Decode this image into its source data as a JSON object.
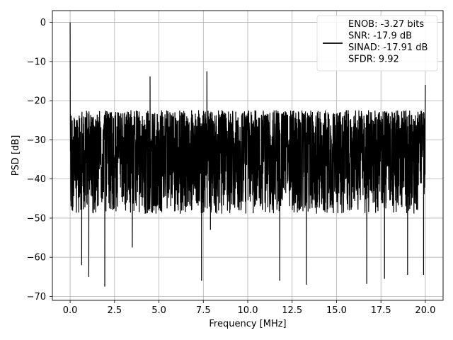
{
  "chart_data": {
    "type": "line",
    "xlabel": "Frequency [MHz]",
    "ylabel": "PSD [dB]",
    "xlim": [
      -1.0,
      21.0
    ],
    "ylim": [
      -71.0,
      3.0
    ],
    "xticks": [
      0.0,
      2.5,
      5.0,
      7.5,
      10.0,
      12.5,
      15.0,
      17.5,
      20.0
    ],
    "xtick_labels": [
      "0.0",
      "2.5",
      "5.0",
      "7.5",
      "10.0",
      "12.5",
      "15.0",
      "17.5",
      "20.0"
    ],
    "yticks": [
      0,
      -10,
      -20,
      -30,
      -40,
      -50,
      -60,
      -70
    ],
    "ytick_labels": [
      "0",
      "−10",
      "−20",
      "−30",
      "−40",
      "−50",
      "−60",
      "−70"
    ],
    "grid": true,
    "legend_placement": "top-right",
    "series": [
      {
        "name": "ENOB: -3.27 bits\nSNR: -17.9 dB\nSINAD: -17.91 dB\nSFDR: 9.92",
        "color": "#000000",
        "x_range": [
          0.0,
          20.0
        ],
        "noise_floor_center": -32,
        "noise_upper_typical": -24,
        "noise_lower_typical": -45,
        "notable_points": [
          {
            "x": 0.0,
            "y": 0.0
          },
          {
            "x": 0.05,
            "y": -47
          },
          {
            "x": 0.65,
            "y": -62
          },
          {
            "x": 1.05,
            "y": -65
          },
          {
            "x": 1.95,
            "y": -67.5
          },
          {
            "x": 3.5,
            "y": -57.5
          },
          {
            "x": 4.5,
            "y": -13.8
          },
          {
            "x": 7.4,
            "y": -66
          },
          {
            "x": 7.7,
            "y": -12.5
          },
          {
            "x": 7.9,
            "y": -53
          },
          {
            "x": 11.8,
            "y": -66
          },
          {
            "x": 13.3,
            "y": -67
          },
          {
            "x": 16.7,
            "y": -66.8
          },
          {
            "x": 17.7,
            "y": -65.5
          },
          {
            "x": 19.0,
            "y": -64.5
          },
          {
            "x": 19.9,
            "y": -64.5
          },
          {
            "x": 20.0,
            "y": -16
          }
        ]
      }
    ]
  }
}
